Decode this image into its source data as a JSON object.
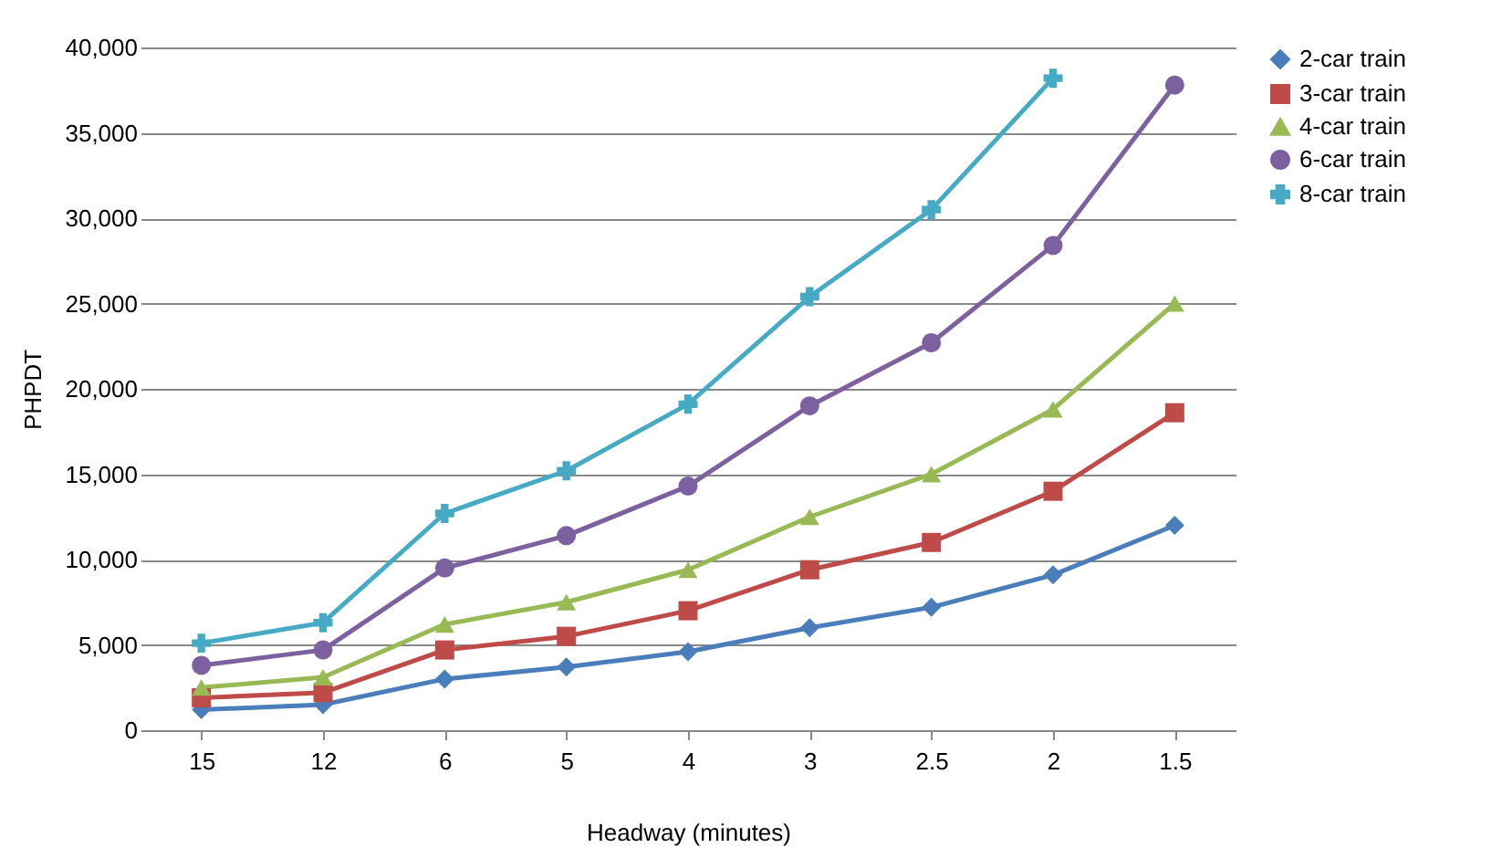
{
  "chart_data": {
    "type": "line",
    "xlabel": "Headway (minutes)",
    "ylabel": "PHPDT",
    "categories": [
      "15",
      "12",
      "6",
      "5",
      "4",
      "3",
      "2.5",
      "2",
      "1.5"
    ],
    "series": [
      {
        "name": "2-car train",
        "color": "#4a7ebb",
        "marker": "diamond",
        "values": [
          1200,
          1500,
          3000,
          3700,
          4600,
          6000,
          7200,
          9100,
          12000
        ]
      },
      {
        "name": "3-car train",
        "color": "#be4b48",
        "marker": "square",
        "values": [
          1900,
          2200,
          4700,
          5500,
          7000,
          9400,
          11000,
          14000,
          18600
        ]
      },
      {
        "name": "4-car train",
        "color": "#98b954",
        "marker": "triangle",
        "values": [
          2500,
          3100,
          6200,
          7500,
          9400,
          12500,
          15000,
          18800,
          25000
        ]
      },
      {
        "name": "6-car train",
        "color": "#7d60a0",
        "marker": "circle",
        "values": [
          3800,
          4700,
          9500,
          11400,
          14300,
          19000,
          22700,
          28400,
          37800
        ]
      },
      {
        "name": "8-car train",
        "color": "#46aac5",
        "marker": "cross",
        "values": [
          5100,
          6300,
          12700,
          15200,
          19100,
          25400,
          30500,
          38200,
          null
        ]
      }
    ],
    "ylim": [
      0,
      40000
    ],
    "yticks": [
      {
        "value": 0,
        "label": "0"
      },
      {
        "value": 5000,
        "label": "5,000"
      },
      {
        "value": 10000,
        "label": "10,000"
      },
      {
        "value": 15000,
        "label": "15,000"
      },
      {
        "value": 20000,
        "label": "20,000"
      },
      {
        "value": 25000,
        "label": "25,000"
      },
      {
        "value": 30000,
        "label": "30,000"
      },
      {
        "value": 35000,
        "label": "35,000"
      },
      {
        "value": 40000,
        "label": "40,000"
      }
    ],
    "grid": "y",
    "legend": "right"
  }
}
